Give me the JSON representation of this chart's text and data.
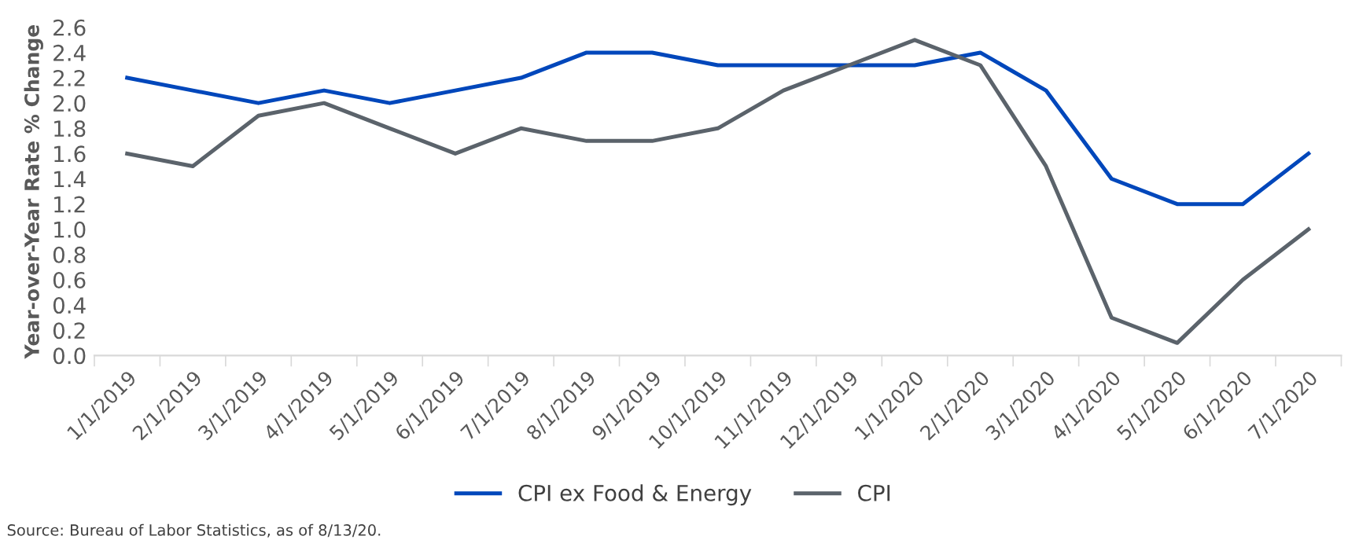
{
  "chart_data": {
    "type": "line",
    "ylabel": "Year-over-Year Rate % Change",
    "categories": [
      "1/1/2019",
      "2/1/2019",
      "3/1/2019",
      "4/1/2019",
      "5/1/2019",
      "6/1/2019",
      "7/1/2019",
      "8/1/2019",
      "9/1/2019",
      "10/1/2019",
      "11/1/2019",
      "12/1/2019",
      "1/1/2020",
      "2/1/2020",
      "3/1/2020",
      "4/1/2020",
      "5/1/2020",
      "6/1/2020",
      "7/1/2020"
    ],
    "series": [
      {
        "name": "CPI ex Food & Energy",
        "color": "#0047bb",
        "values": [
          2.2,
          2.1,
          2.0,
          2.1,
          2.0,
          2.1,
          2.2,
          2.4,
          2.4,
          2.3,
          2.3,
          2.3,
          2.3,
          2.4,
          2.1,
          1.4,
          1.2,
          1.2,
          1.6
        ]
      },
      {
        "name": "CPI",
        "color": "#5b636b",
        "values": [
          1.6,
          1.5,
          1.9,
          2.0,
          1.8,
          1.6,
          1.8,
          1.7,
          1.7,
          1.8,
          2.1,
          2.3,
          2.5,
          2.3,
          1.5,
          0.3,
          0.1,
          0.6,
          1.0
        ]
      }
    ],
    "ylim": [
      0,
      2.6
    ],
    "yticks": [
      {
        "value": 0,
        "label": "0.0"
      },
      0.2,
      0.4,
      0.6,
      0.8,
      {
        "value": 1,
        "label": "1.0"
      },
      1.2,
      1.4,
      1.6,
      1.8,
      {
        "value": 2,
        "label": "2.0"
      },
      2.2,
      2.4,
      2.6
    ],
    "grid": false,
    "legend": "bottom",
    "marker": "none",
    "line_style": "solid",
    "annotations": [
      "Source: Bureau of Labor Statistics, as of 8/13/20."
    ]
  }
}
